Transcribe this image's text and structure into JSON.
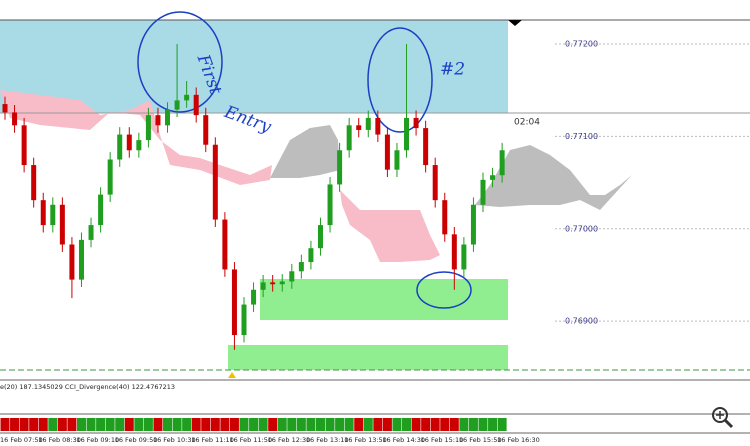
{
  "chart_data": {
    "type": "candlestick",
    "categories": [
      "16 Feb 07:50",
      null,
      null,
      null,
      "16 Feb 08:30",
      null,
      null,
      null,
      "16 Feb 09:10",
      null,
      null,
      null,
      "16 Feb 09:50",
      null,
      null,
      null,
      "16 Feb 10:30",
      null,
      null,
      null,
      "16 Feb 11:10",
      null,
      null,
      null,
      "16 Feb 11:50",
      null,
      null,
      null,
      "16 Feb 12:30",
      null,
      null,
      null,
      "16 Feb 13:10",
      null,
      null,
      null,
      "16 Feb 13:50",
      null,
      null,
      null,
      "16 Feb 14:30",
      null,
      null,
      null,
      "16 Feb 15:10",
      null,
      null,
      null,
      "16 Feb 15:50",
      null,
      null,
      null,
      "16 Feb 16:30"
    ],
    "open": [
      0.77135,
      0.77126,
      0.77112,
      0.77069,
      0.77031,
      0.77004,
      0.77026,
      0.76983,
      0.76945,
      0.76988,
      0.77004,
      0.77037,
      0.77075,
      0.77102,
      0.77085,
      0.77096,
      0.77123,
      0.77112,
      0.77129,
      0.77139,
      0.77145,
      0.77123,
      0.77091,
      0.7701,
      0.76956,
      0.76885,
      0.76918,
      0.76934,
      0.76942,
      0.7694,
      0.76943,
      0.76954,
      0.76964,
      0.76979,
      0.77004,
      0.77048,
      0.77085,
      0.77112,
      0.77107,
      0.7712,
      0.77102,
      0.77064,
      0.77085,
      0.7712,
      0.77109,
      0.77069,
      0.77031,
      0.76994,
      0.76956,
      0.76983,
      0.77026,
      0.77053,
      0.77058
    ],
    "high": [
      0.77143,
      0.77134,
      0.7712,
      0.77077,
      0.77039,
      0.77034,
      0.77034,
      0.76991,
      0.76996,
      0.77012,
      0.77045,
      0.77083,
      0.7711,
      0.7711,
      0.77104,
      0.77131,
      0.77131,
      0.77137,
      0.772,
      0.7716,
      0.77153,
      0.77131,
      0.77099,
      0.77018,
      0.76964,
      0.76926,
      0.76942,
      0.7695,
      0.7695,
      0.76951,
      0.76962,
      0.76972,
      0.76987,
      0.77012,
      0.77056,
      0.77093,
      0.7712,
      0.7712,
      0.77128,
      0.77128,
      0.7711,
      0.77093,
      0.772,
      0.77128,
      0.77117,
      0.77077,
      0.77039,
      0.77002,
      0.76991,
      0.77034,
      0.77061,
      0.77066,
      0.77093
    ],
    "low": [
      0.77118,
      0.77104,
      0.77061,
      0.77023,
      0.76996,
      0.76996,
      0.76975,
      0.76925,
      0.76937,
      0.7698,
      0.76996,
      0.77029,
      0.77067,
      0.77077,
      0.77077,
      0.77088,
      0.77104,
      0.77104,
      0.77121,
      0.77131,
      0.77115,
      0.77083,
      0.77002,
      0.76948,
      0.76869,
      0.76877,
      0.7691,
      0.76926,
      0.76932,
      0.76932,
      0.76935,
      0.76946,
      0.76956,
      0.76971,
      0.76996,
      0.7704,
      0.77077,
      0.77099,
      0.77099,
      0.77094,
      0.77056,
      0.77056,
      0.77077,
      0.77101,
      0.77061,
      0.77023,
      0.76986,
      0.76934,
      0.76948,
      0.76975,
      0.77018,
      0.77045,
      0.7705
    ],
    "close": [
      0.77126,
      0.77112,
      0.77069,
      0.77031,
      0.77004,
      0.77026,
      0.76983,
      0.76945,
      0.76988,
      0.77004,
      0.77037,
      0.77075,
      0.77102,
      0.77085,
      0.77096,
      0.77123,
      0.77112,
      0.77129,
      0.77139,
      0.77145,
      0.77123,
      0.77091,
      0.7701,
      0.76956,
      0.76885,
      0.76918,
      0.76934,
      0.76942,
      0.7694,
      0.76943,
      0.76954,
      0.76964,
      0.76979,
      0.77004,
      0.77048,
      0.77085,
      0.77112,
      0.77107,
      0.7712,
      0.77102,
      0.77064,
      0.77085,
      0.7712,
      0.77109,
      0.77069,
      0.77031,
      0.76994,
      0.76956,
      0.76983,
      0.77026,
      0.77053,
      0.77058,
      0.77085
    ],
    "up_color": "#1f9e1f",
    "down_color": "#cc0000",
    "ylim": [
      0.76845,
      0.77226
    ],
    "yticks": [
      {
        "value": 0.769,
        "label": "0.76900"
      },
      {
        "value": 0.77,
        "label": "0.77000"
      },
      {
        "value": 0.771,
        "label": "0.77100"
      },
      {
        "value": 0.772,
        "label": "0.77200"
      }
    ],
    "timer": "02:04",
    "indicator_label": "e(20) 187.1345029 CCI_Divergence(40) 122.4767213",
    "annotations": [
      "First",
      "Entry",
      "#2"
    ]
  }
}
